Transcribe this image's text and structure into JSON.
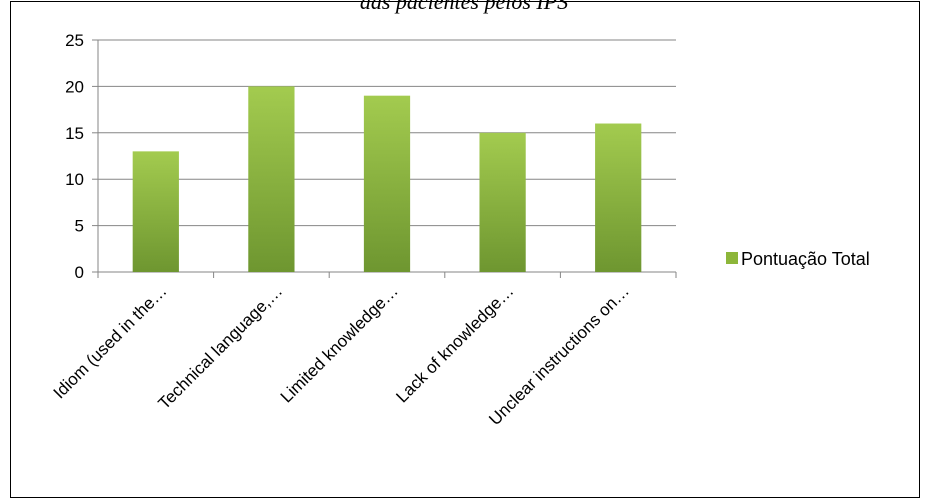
{
  "page": {
    "title": "das pacientes pelos IPS"
  },
  "chart_data": {
    "type": "bar",
    "title": "",
    "xlabel": "",
    "ylabel": "",
    "categories": [
      "Idiom (used in the…",
      "Technical language,…",
      "Limited knowledge…",
      "Lack of knowledge…",
      "Unclear instructions on…"
    ],
    "series": [
      {
        "name": "Pontuação Total",
        "values": [
          13,
          20,
          19,
          15,
          16
        ],
        "color": "#8DB63A"
      }
    ],
    "ylim": [
      0,
      25
    ],
    "yticks": [
      0,
      5,
      10,
      15,
      20,
      25
    ],
    "grid": true,
    "legend": "right"
  }
}
